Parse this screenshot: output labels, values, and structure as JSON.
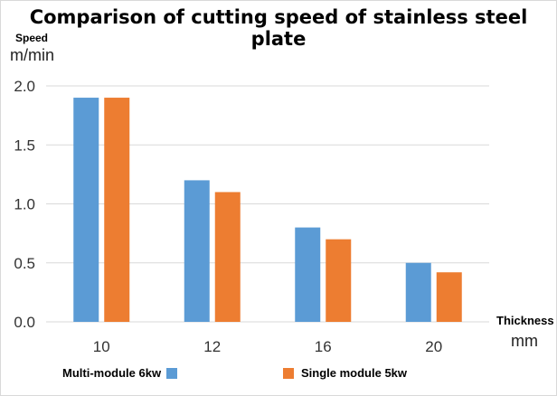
{
  "chart_data": {
    "type": "bar",
    "title": "Comparison of cutting speed of stainless steel plate",
    "ylabel": "Speed",
    "yunit": "m/min",
    "xlabel": "Thickness",
    "xunit": "mm",
    "categories": [
      "10",
      "12",
      "16",
      "20"
    ],
    "ylim": [
      0,
      2.0
    ],
    "yticks": [
      "0.0",
      "0.5",
      "1.0",
      "1.5",
      "2.0"
    ],
    "grid": true,
    "legend_position": "bottom",
    "series": [
      {
        "name": "Multi-module 6kw",
        "color": "#5b9bd5",
        "values": [
          1.9,
          1.2,
          0.8,
          0.5
        ]
      },
      {
        "name": "Single module 5kw",
        "color": "#ed7d31",
        "values": [
          1.9,
          1.1,
          0.7,
          0.42
        ]
      }
    ]
  }
}
